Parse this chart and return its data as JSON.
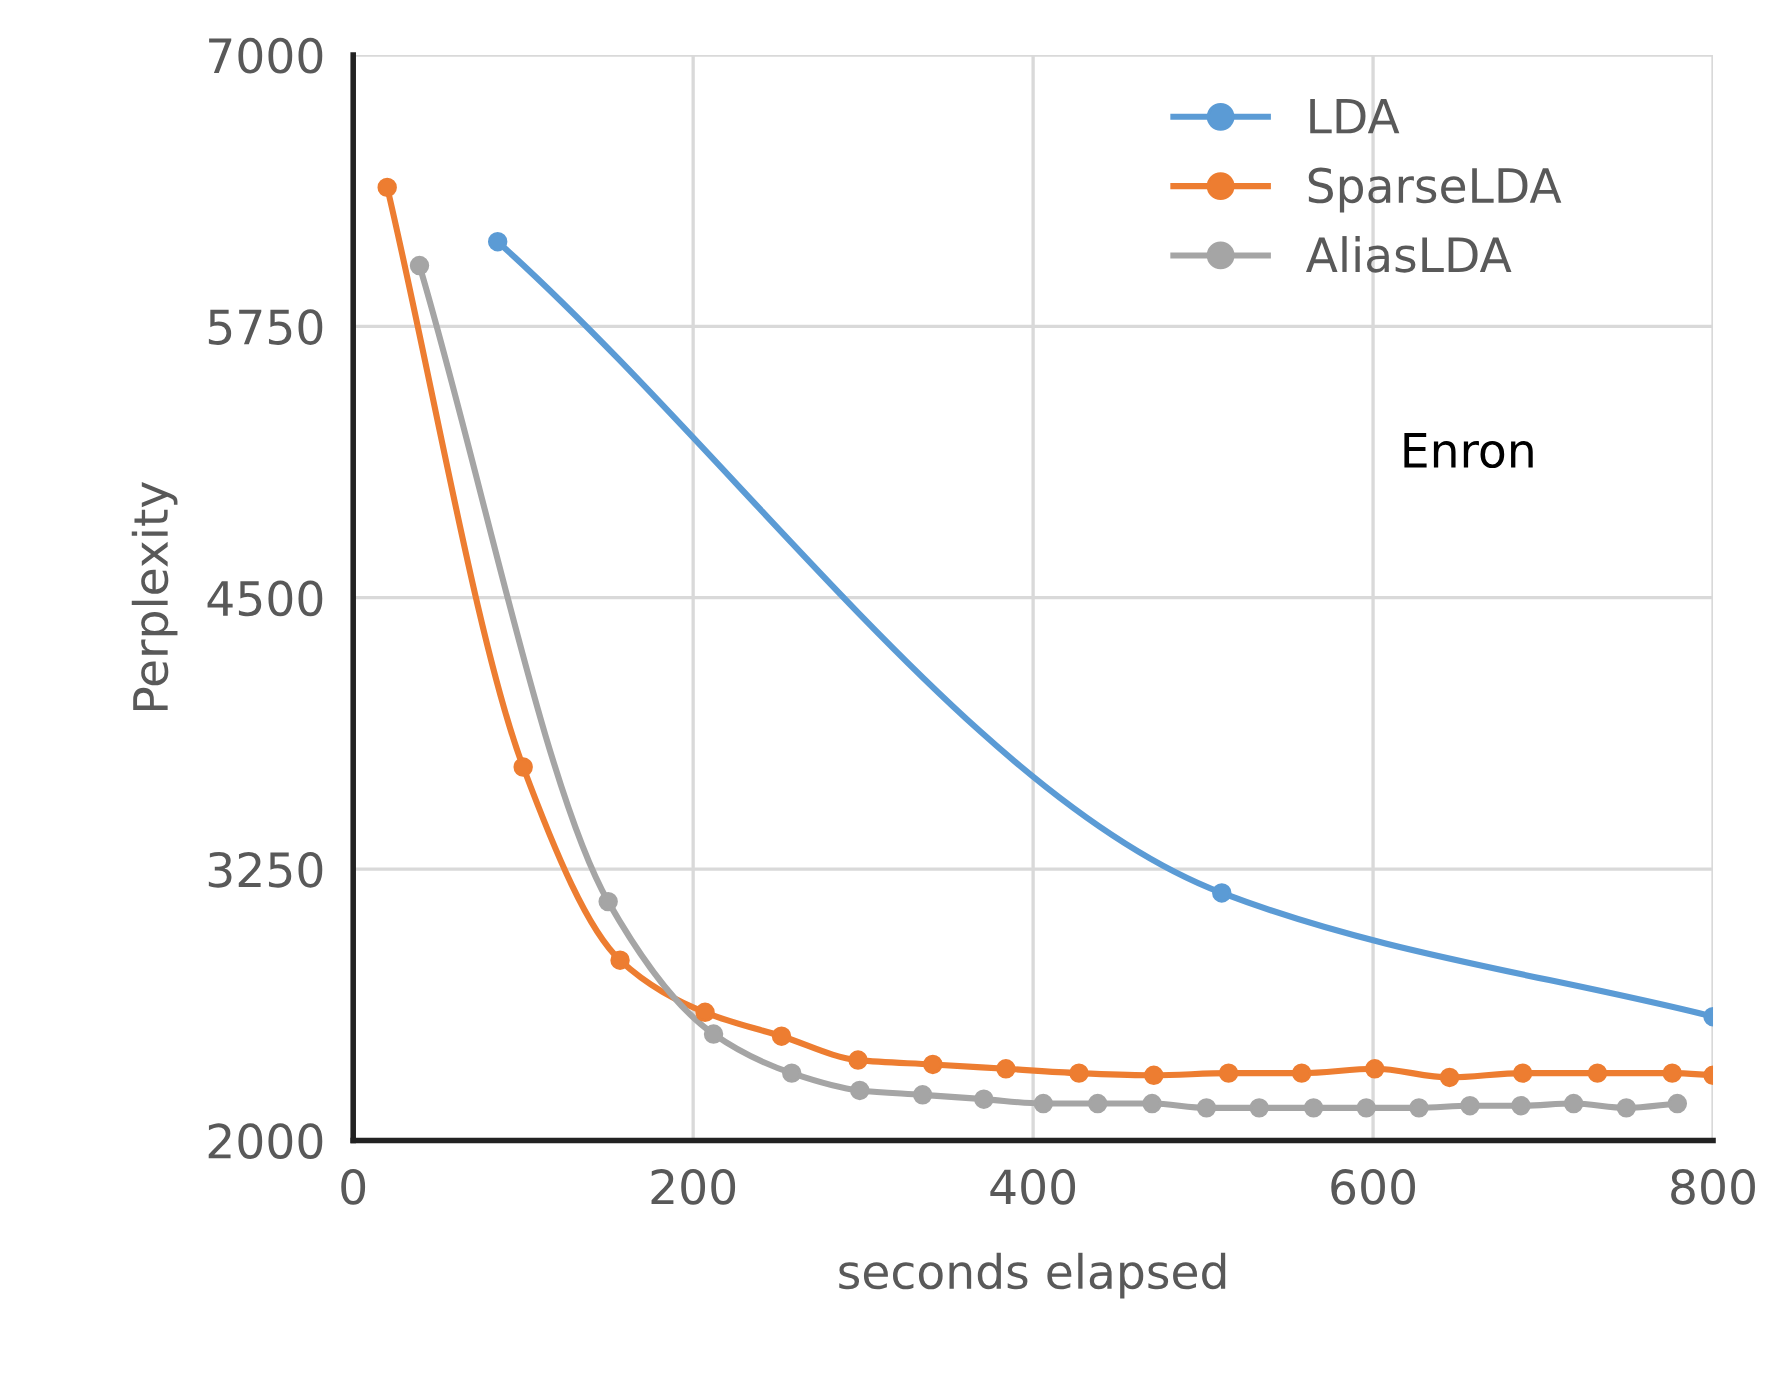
{
  "chart_data": {
    "type": "line",
    "xlabel": "seconds elapsed",
    "ylabel": "Perplexity",
    "xlim": [
      0,
      800
    ],
    "ylim": [
      2000,
      7000
    ],
    "xticks": [
      0,
      200,
      400,
      600,
      800
    ],
    "yticks": [
      2000,
      3250,
      4500,
      5750,
      7000
    ],
    "grid": true,
    "legend": "top right",
    "marker": "circle",
    "line_style": "solid",
    "annotations": [
      "Enron"
    ],
    "series": [
      {
        "name": "LDA",
        "color": "#5b9bd5",
        "x": [
          85,
          511,
          800
        ],
        "values": [
          6140,
          3140,
          2570
        ]
      },
      {
        "name": "SparseLDA",
        "color": "#ed7d31",
        "x": [
          20,
          100,
          157,
          207,
          252,
          297,
          341,
          384,
          427,
          471,
          515,
          558,
          601,
          645,
          688,
          732,
          776,
          800
        ],
        "values": [
          6390,
          3720,
          2830,
          2590,
          2480,
          2370,
          2350,
          2330,
          2310,
          2300,
          2310,
          2310,
          2330,
          2290,
          2310,
          2310,
          2310,
          2300
        ]
      },
      {
        "name": "AliasLDA",
        "color": "#a5a5a5",
        "x": [
          39,
          150,
          212,
          258,
          298,
          335,
          371,
          406,
          438,
          470,
          502,
          533,
          565,
          596,
          627,
          657,
          687,
          718,
          749,
          779
        ],
        "values": [
          6030,
          3100,
          2490,
          2310,
          2230,
          2210,
          2190,
          2170,
          2170,
          2170,
          2150,
          2150,
          2150,
          2150,
          2150,
          2160,
          2160,
          2170,
          2150,
          2170
        ]
      }
    ]
  }
}
